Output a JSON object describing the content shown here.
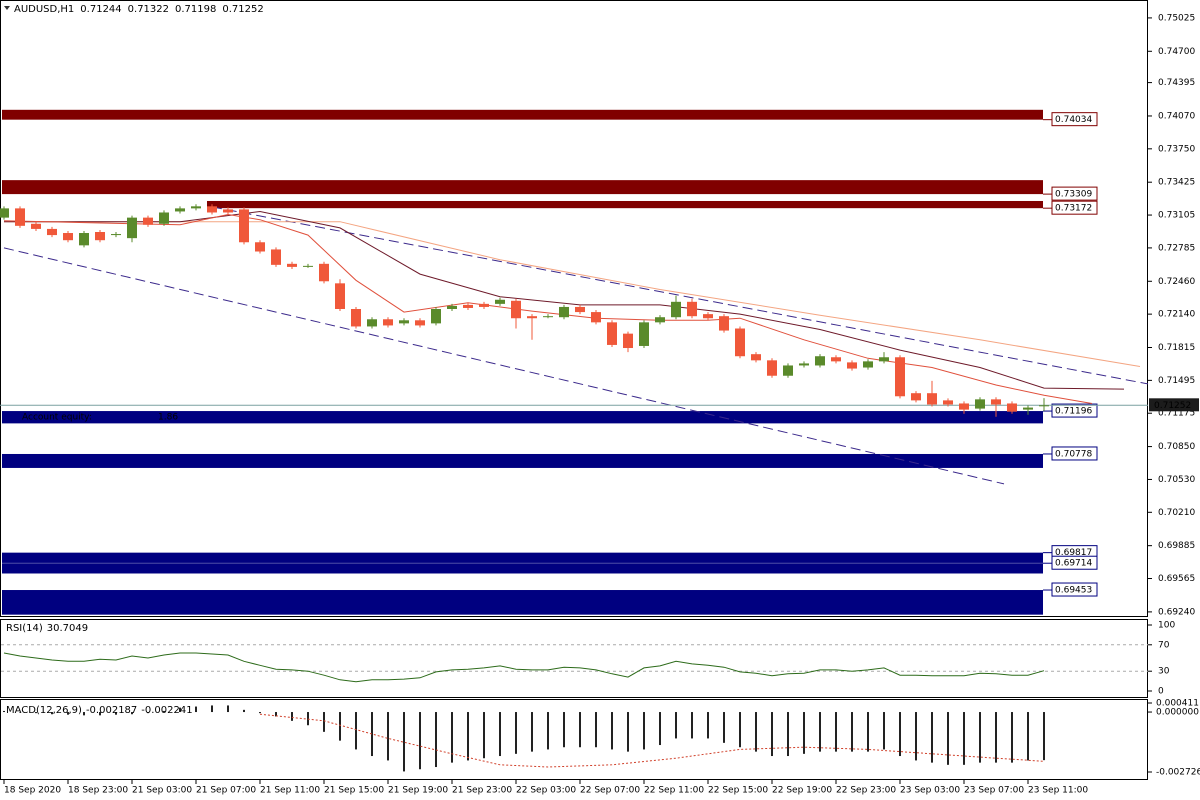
{
  "chart_data": [
    {
      "type": "candlestick",
      "title": "AUDUSD,H1",
      "ohlc": [
        0.71244,
        0.71322,
        0.71198,
        0.71252
      ],
      "up_color": "#5a8a2b",
      "down_color": "#f0583a",
      "open": [
        0.7308,
        0.7317,
        0.7302,
        0.7297,
        0.7293,
        0.7281,
        0.7294,
        0.7291,
        0.7288,
        0.7308,
        0.7302,
        0.7314,
        0.7317,
        0.7319,
        0.7316,
        0.7316,
        0.7284,
        0.7277,
        0.7263,
        0.7261,
        0.7263,
        0.7244,
        0.7219,
        0.7202,
        0.7209,
        0.7205,
        0.7208,
        0.7205,
        0.7219,
        0.7223,
        0.7224,
        0.7224,
        0.7227,
        0.7212,
        0.7212,
        0.7211,
        0.7221,
        0.7216,
        0.7206,
        0.7195,
        0.7183,
        0.7206,
        0.7211,
        0.7226,
        0.7214,
        0.7212,
        0.72,
        0.7175,
        0.7169,
        0.7154,
        0.7164,
        0.7164,
        0.7172,
        0.7167,
        0.7162,
        0.7168,
        0.7172,
        0.7137,
        0.7137,
        0.713,
        0.7127,
        0.7122,
        0.7131,
        0.7127,
        0.7121,
        0.71244
      ],
      "high": [
        0.7319,
        0.7319,
        0.7304,
        0.7299,
        0.7295,
        0.7295,
        0.7296,
        0.7294,
        0.731,
        0.731,
        0.7315,
        0.7319,
        0.7321,
        0.7321,
        0.7318,
        0.7318,
        0.7286,
        0.7279,
        0.7265,
        0.7263,
        0.7265,
        0.7248,
        0.7221,
        0.7211,
        0.7211,
        0.721,
        0.721,
        0.7221,
        0.7224,
        0.7225,
        0.7226,
        0.723,
        0.7229,
        0.7214,
        0.7214,
        0.7223,
        0.7223,
        0.7218,
        0.7208,
        0.7197,
        0.7208,
        0.7213,
        0.7232,
        0.7229,
        0.7216,
        0.7214,
        0.7202,
        0.7177,
        0.7171,
        0.7166,
        0.7168,
        0.7175,
        0.7174,
        0.7169,
        0.717,
        0.7177,
        0.7174,
        0.7139,
        0.7149,
        0.7132,
        0.7129,
        0.7133,
        0.7133,
        0.7129,
        0.7125,
        0.71322
      ],
      "low": [
        0.7306,
        0.7298,
        0.7295,
        0.7289,
        0.7284,
        0.7279,
        0.7284,
        0.7289,
        0.7284,
        0.7299,
        0.73,
        0.7312,
        0.7315,
        0.7311,
        0.7311,
        0.7282,
        0.7273,
        0.726,
        0.7258,
        0.7259,
        0.7244,
        0.7217,
        0.72,
        0.72,
        0.7201,
        0.7203,
        0.7201,
        0.7203,
        0.7217,
        0.7218,
        0.7219,
        0.7222,
        0.72,
        0.7189,
        0.721,
        0.7209,
        0.7214,
        0.7204,
        0.7182,
        0.7177,
        0.7181,
        0.7204,
        0.7209,
        0.721,
        0.7208,
        0.7196,
        0.7171,
        0.7167,
        0.7152,
        0.7152,
        0.7162,
        0.7162,
        0.7166,
        0.7159,
        0.716,
        0.7166,
        0.7132,
        0.7128,
        0.7124,
        0.7124,
        0.7117,
        0.712,
        0.7114,
        0.7117,
        0.7116,
        0.71198
      ],
      "close": [
        0.7317,
        0.73,
        0.7297,
        0.7291,
        0.7286,
        0.7293,
        0.7286,
        0.7292,
        0.7308,
        0.7301,
        0.7313,
        0.7317,
        0.7319,
        0.7313,
        0.7313,
        0.7284,
        0.7275,
        0.7262,
        0.726,
        0.7261,
        0.7246,
        0.7219,
        0.7202,
        0.7209,
        0.7203,
        0.7208,
        0.7203,
        0.7219,
        0.7222,
        0.722,
        0.7221,
        0.7228,
        0.721,
        0.721,
        0.7212,
        0.7221,
        0.7216,
        0.7206,
        0.7184,
        0.7181,
        0.7206,
        0.7211,
        0.7226,
        0.7212,
        0.721,
        0.7198,
        0.7173,
        0.7169,
        0.7154,
        0.7164,
        0.7166,
        0.7173,
        0.7168,
        0.7161,
        0.7168,
        0.7172,
        0.7134,
        0.713,
        0.7126,
        0.7126,
        0.7121,
        0.7131,
        0.7126,
        0.7119,
        0.7123,
        0.71252
      ],
      "lines": [
        {
          "color": "#f4a582",
          "x": [
            0,
            21,
            31,
            41,
            51,
            61,
            71
          ],
          "values": [
            0.7304,
            0.7304,
            0.7267,
            0.7238,
            0.7213,
            0.7189,
            0.7163
          ]
        },
        {
          "color": "#6e1a2a",
          "x": [
            0,
            11,
            16,
            21,
            26,
            31,
            36,
            41,
            46,
            51,
            56,
            61,
            65,
            70
          ],
          "values": [
            0.7304,
            0.7304,
            0.7314,
            0.7298,
            0.7253,
            0.7231,
            0.7223,
            0.7223,
            0.7214,
            0.7199,
            0.7179,
            0.7162,
            0.7142,
            0.7141
          ]
        },
        {
          "color": "#e0503c",
          "x": [
            0,
            11,
            14,
            16,
            19,
            22,
            25,
            29,
            33,
            37,
            41,
            44,
            46,
            50,
            54,
            58,
            62,
            65,
            68
          ],
          "values": [
            0.7305,
            0.7301,
            0.7311,
            0.7306,
            0.7291,
            0.7247,
            0.7216,
            0.7225,
            0.7217,
            0.721,
            0.7208,
            0.7208,
            0.721,
            0.7189,
            0.7171,
            0.7162,
            0.7145,
            0.7135,
            0.7127
          ]
        }
      ],
      "trendlines": [
        {
          "color": "#3c2a8c",
          "x": [
            0,
            62.5
          ],
          "values": [
            0.72785,
            0.70487
          ]
        },
        {
          "color": "#3c2a8c",
          "x": [
            13,
            71.5
          ],
          "values": [
            0.73184,
            0.71461
          ]
        }
      ],
      "zones": [
        {
          "label": 0.74034,
          "top": 0.7413,
          "bottom": 0.74034,
          "color": "#800000",
          "start": null
        },
        {
          "label": 0.73309,
          "top": 0.73445,
          "bottom": 0.73309,
          "color": "#800000",
          "start": null
        },
        {
          "label": 0.73172,
          "top": 0.73242,
          "bottom": 0.73172,
          "color": "#800000",
          "start": 13
        },
        {
          "label": 0.71196,
          "top": 0.71196,
          "bottom": 0.71076,
          "color": "#000080",
          "start": null
        },
        {
          "label": 0.70778,
          "top": 0.70778,
          "bottom": 0.70642,
          "color": "#000080",
          "start": null
        },
        {
          "label": 0.69817,
          "top": 0.69817,
          "bottom": 0.69717,
          "color": "#000080",
          "start": null
        },
        {
          "label": 0.69714,
          "top": 0.69714,
          "bottom": 0.69614,
          "color": "#000080",
          "start": null
        },
        {
          "label": 0.69453,
          "top": 0.69453,
          "bottom": 0.69213,
          "color": "#000080",
          "start": null
        }
      ],
      "account": {
        "label": "Account equity:",
        "value": 1.86
      },
      "ylim": [
        0.692,
        0.7518
      ],
      "yticks": [
        0.75025,
        {
          "value": 0.747,
          "label": "0.74700"
        },
        0.74395,
        {
          "value": 0.7407,
          "label": "0.74070"
        },
        {
          "value": 0.7375,
          "label": "0.73750"
        },
        0.73425,
        0.73105,
        0.72785,
        {
          "value": 0.7246,
          "label": "0.72460"
        },
        {
          "value": 0.7214,
          "label": "0.72140"
        },
        0.71815,
        0.71495,
        0.71175,
        {
          "value": 0.7085,
          "label": "0.70850"
        },
        {
          "value": 0.7053,
          "label": "0.70530"
        },
        {
          "value": 0.7021,
          "label": "0.70210"
        },
        0.69885,
        0.69565,
        {
          "value": 0.6924,
          "label": "0.69240"
        }
      ]
    },
    {
      "type": "line",
      "title": "RSI(14)",
      "last": 30.7049,
      "color": "#2d6b1a",
      "values": [
        57.6,
        53,
        50,
        47,
        45,
        45,
        48,
        47,
        53,
        50,
        54.5,
        57.6,
        57.6,
        56,
        54.5,
        45,
        39,
        33,
        32,
        30,
        24,
        17,
        14,
        17,
        17,
        18,
        20,
        29,
        32,
        33,
        35,
        38,
        33,
        32,
        32,
        36,
        35,
        32,
        26,
        21,
        35,
        38,
        45,
        41,
        39,
        36,
        29,
        27,
        23,
        26,
        27,
        32,
        32,
        30,
        32,
        35,
        24,
        24,
        23,
        23,
        23,
        27,
        26,
        24,
        24,
        30.7049
      ],
      "ylim": [
        0,
        100
      ],
      "yticks": [
        100,
        70,
        30,
        0
      ],
      "levels": [
        70,
        30
      ]
    },
    {
      "type": "macd",
      "title": "MACD(12,26,9)",
      "last": [
        -0.002187,
        -0.002241
      ],
      "color": "#222222",
      "signal_color": "#d0402a",
      "values": [
        5e-05,
        0,
        -5e-05,
        -0.0001,
        -0.00012,
        -0.00015,
        -0.00015,
        -0.00012,
        -0.0001,
        -5e-05,
        5e-05,
        0.0002,
        0.00025,
        0.0003,
        0.0003,
        0.0001,
        -5e-05,
        -0.0002,
        -0.0004,
        -0.0006,
        -0.0009,
        -0.0013,
        -0.0017,
        -0.002,
        -0.0022,
        -0.0027,
        -0.0026,
        -0.0025,
        -0.0023,
        -0.0022,
        -0.0021,
        -0.002,
        -0.0019,
        -0.0018,
        -0.0017,
        -0.0016,
        -0.0016,
        -0.0016,
        -0.0017,
        -0.0018,
        -0.0017,
        -0.0015,
        -0.0012,
        -0.0012,
        -0.0012,
        -0.0014,
        -0.0016,
        -0.0018,
        -0.002,
        -0.002,
        -0.0019,
        -0.0018,
        -0.0018,
        -0.0018,
        -0.0018,
        -0.0017,
        -0.002,
        -0.0022,
        -0.0023,
        -0.0024,
        -0.0024,
        -0.0023,
        -0.0023,
        -0.0023,
        -0.0022,
        -0.002187
      ],
      "signal": {
        "x": [
          16,
          20,
          24,
          28,
          31,
          34,
          38,
          42,
          46,
          50,
          54,
          58,
          62,
          65
        ],
        "values": [
          -0.0001,
          -0.0004,
          -0.0012,
          -0.0019,
          -0.0024,
          -0.0025,
          -0.0024,
          -0.0021,
          -0.0017,
          -0.0016,
          -0.0017,
          -0.0019,
          -0.0021,
          -0.002241
        ]
      },
      "ylim": [
        -0.002726,
        0.000411
      ],
      "yticks": [
        0.000411,
        {
          "value": 0,
          "label": "0.000000"
        },
        -0.002726
      ],
      "xticks": [
        {
          "value": 0,
          "label": "18 Sep 2020"
        },
        {
          "value": 4,
          "label": "18 Sep 23:00"
        },
        {
          "value": 8,
          "label": "21 Sep 03:00"
        },
        {
          "value": 12,
          "label": "21 Sep 07:00"
        },
        {
          "value": 16,
          "label": "21 Sep 11:00"
        },
        {
          "value": 20,
          "label": "21 Sep 15:00"
        },
        {
          "value": 24,
          "label": "21 Sep 19:00"
        },
        {
          "value": 28,
          "label": "21 Sep 23:00"
        },
        {
          "value": 32,
          "label": "22 Sep 03:00"
        },
        {
          "value": 36,
          "label": "22 Sep 07:00"
        },
        {
          "value": 40,
          "label": "22 Sep 11:00"
        },
        {
          "value": 44,
          "label": "22 Sep 15:00"
        },
        {
          "value": 48,
          "label": "22 Sep 19:00"
        },
        {
          "value": 52,
          "label": "22 Sep 23:00"
        },
        {
          "value": 56,
          "label": "23 Sep 03:00"
        },
        {
          "value": 60,
          "label": "23 Sep 07:00"
        },
        {
          "value": 64,
          "label": "23 Sep 11:00"
        }
      ]
    }
  ]
}
